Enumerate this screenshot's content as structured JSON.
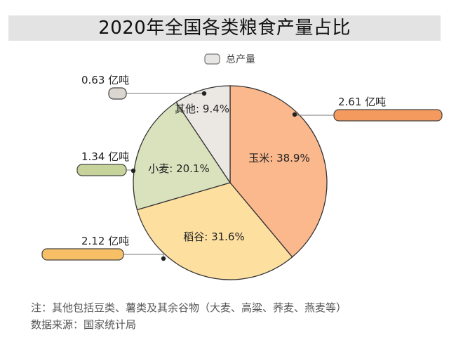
{
  "chart_data": {
    "type": "pie",
    "title": "2020年全国各类粮食产量占比",
    "legend": {
      "label": "总产量",
      "placement": "top"
    },
    "slices": [
      {
        "name": "玉米",
        "label": "玉米: 38.9%",
        "percent": 38.9,
        "value_label": "2.61 亿吨",
        "value": 2.61,
        "color": "#fbb88d",
        "callout_color": "#f49a5e"
      },
      {
        "name": "稻谷",
        "label": "稻谷: 31.6%",
        "percent": 31.6,
        "value_label": "2.12 亿吨",
        "value": 2.12,
        "color": "#fddfa0",
        "callout_color": "#f7c066"
      },
      {
        "name": "小麦",
        "label": "小麦: 20.1%",
        "percent": 20.1,
        "value_label": "1.34 亿吨",
        "value": 1.34,
        "color": "#dae2bd",
        "callout_color": "#c6d39b"
      },
      {
        "name": "其他",
        "label": "其他: 9.4%",
        "percent": 9.4,
        "value_label": "0.63 亿吨",
        "value": 0.63,
        "color": "#ebe7e3",
        "callout_color": "#dcd6d1"
      }
    ]
  },
  "notes": {
    "footnote": "注：其他包括豆类、薯类及其余谷物（大麦、高粱、荞麦、燕麦等）",
    "source": "数据来源：国家统计局"
  }
}
